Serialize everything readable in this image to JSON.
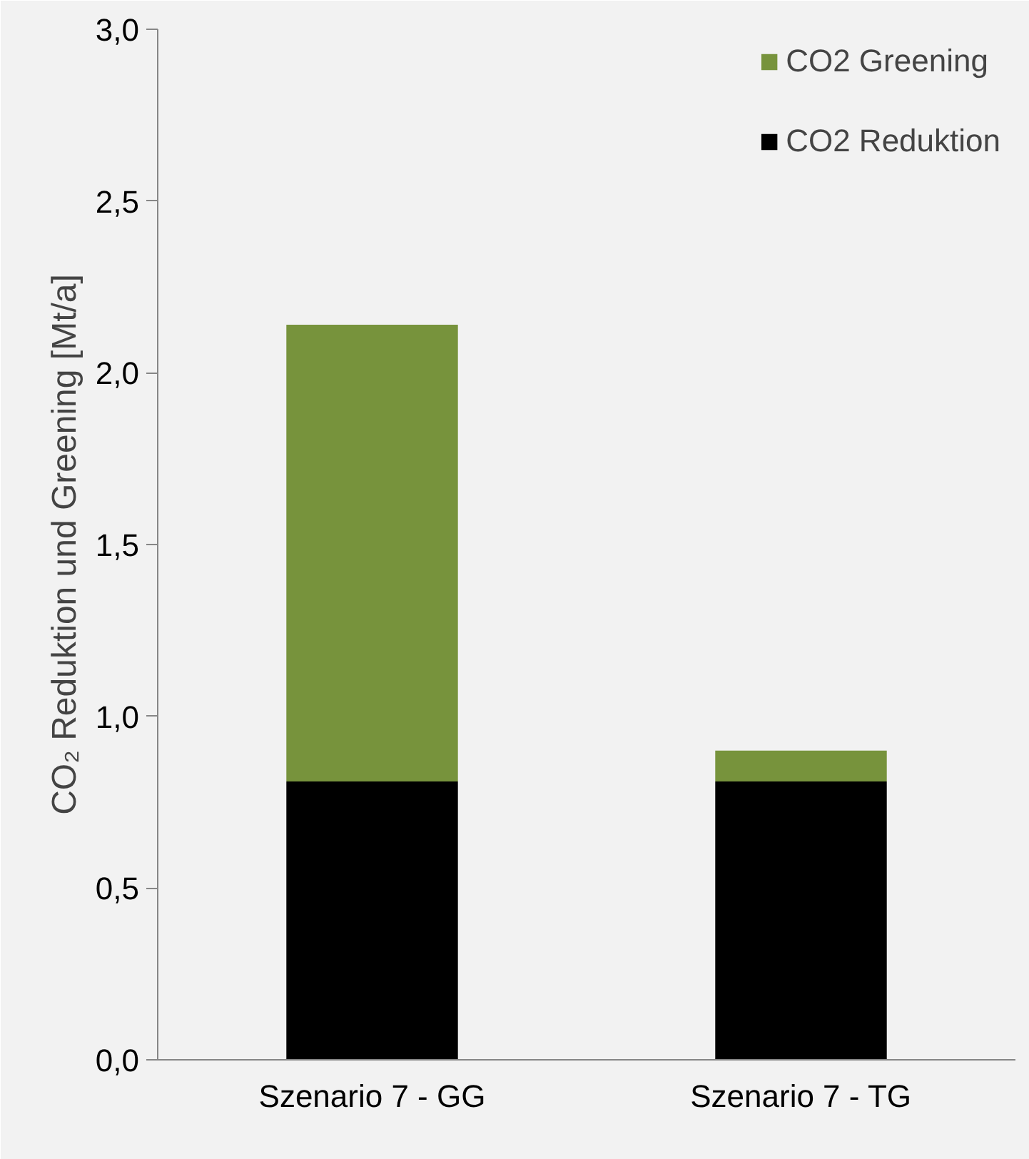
{
  "chart_data": {
    "type": "bar",
    "stacked": true,
    "ylabel": "CO₂ Reduktion und Greening [Mt/a]",
    "categories": [
      "Szenario 7 - GG",
      "Szenario 7 - TG"
    ],
    "series": [
      {
        "name": "CO2 Reduktion",
        "color": "#000000",
        "values": [
          0.81,
          0.81
        ]
      },
      {
        "name": "CO2 Greening",
        "color": "#77933c",
        "values": [
          1.33,
          0.09
        ]
      }
    ],
    "ylim": [
      0,
      3
    ],
    "yticks": [
      {
        "value": 0,
        "label": "0,0"
      },
      {
        "value": 0.5,
        "label": "0,5"
      },
      {
        "value": 1,
        "label": "1,0"
      },
      {
        "value": 1.5,
        "label": "1,5"
      },
      {
        "value": 2,
        "label": "2,0"
      },
      {
        "value": 2.5,
        "label": "2,5"
      },
      {
        "value": 3,
        "label": "3,0"
      }
    ],
    "grid": false,
    "legend": "top right"
  }
}
